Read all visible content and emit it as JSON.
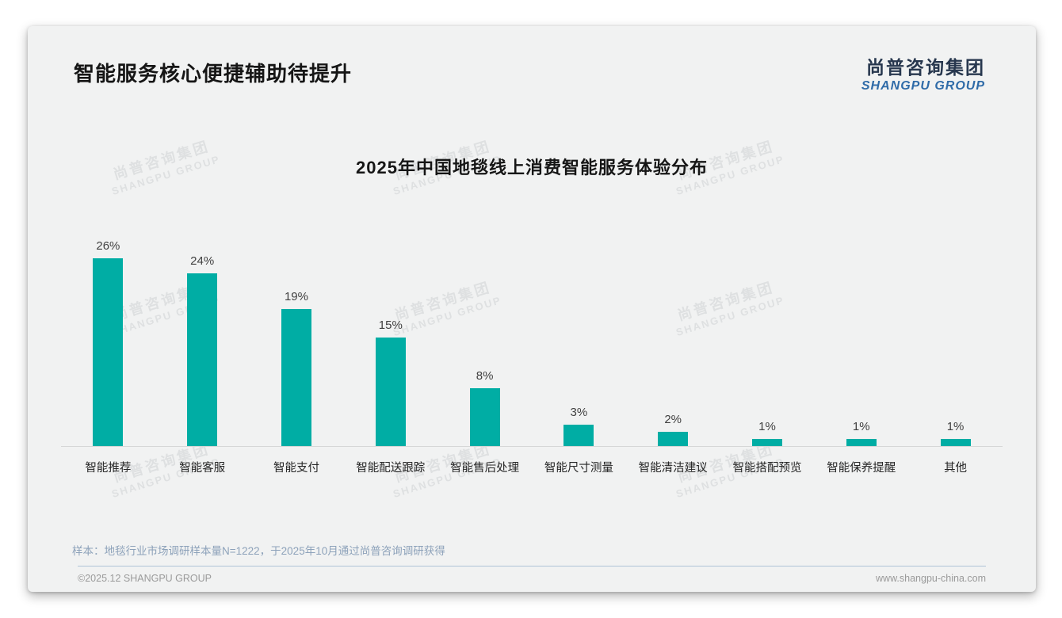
{
  "page": {
    "header": {
      "title": "智能服务核心便捷辅助待提升"
    },
    "logo": {
      "cn": "尚普咨询集团",
      "en": "SHANGPU GROUP",
      "cn_color": "#27374e",
      "en_color": "#2f6ba8"
    },
    "watermark": {
      "cn": "尚普咨询集团",
      "en": "SHANGPU GROUP"
    },
    "footnote": "样本：地毯行业市场调研样本量N=1222，于2025年10月通过尚普咨询调研获得",
    "footer": {
      "left": "©2025.12 SHANGPU GROUP",
      "right": "www.shangpu-china.com"
    }
  },
  "chart_data": {
    "type": "bar",
    "title": "2025年中国地毯线上消费智能服务体验分布",
    "categories": [
      "智能推荐",
      "智能客服",
      "智能支付",
      "智能配送跟踪",
      "智能售后处理",
      "智能尺寸测量",
      "智能清洁建议",
      "智能搭配预览",
      "智能保养提醒",
      "其他"
    ],
    "values": [
      26,
      24,
      19,
      15,
      8,
      3,
      2,
      1,
      1,
      1
    ],
    "value_labels": [
      "26%",
      "24%",
      "19%",
      "15%",
      "8%",
      "3%",
      "2%",
      "1%",
      "1%",
      "1%"
    ],
    "unit": "%",
    "bar_color": "#00ada4",
    "xlabel": "",
    "ylabel": "",
    "ylim": [
      0,
      28
    ],
    "grid": false,
    "legend": null
  }
}
